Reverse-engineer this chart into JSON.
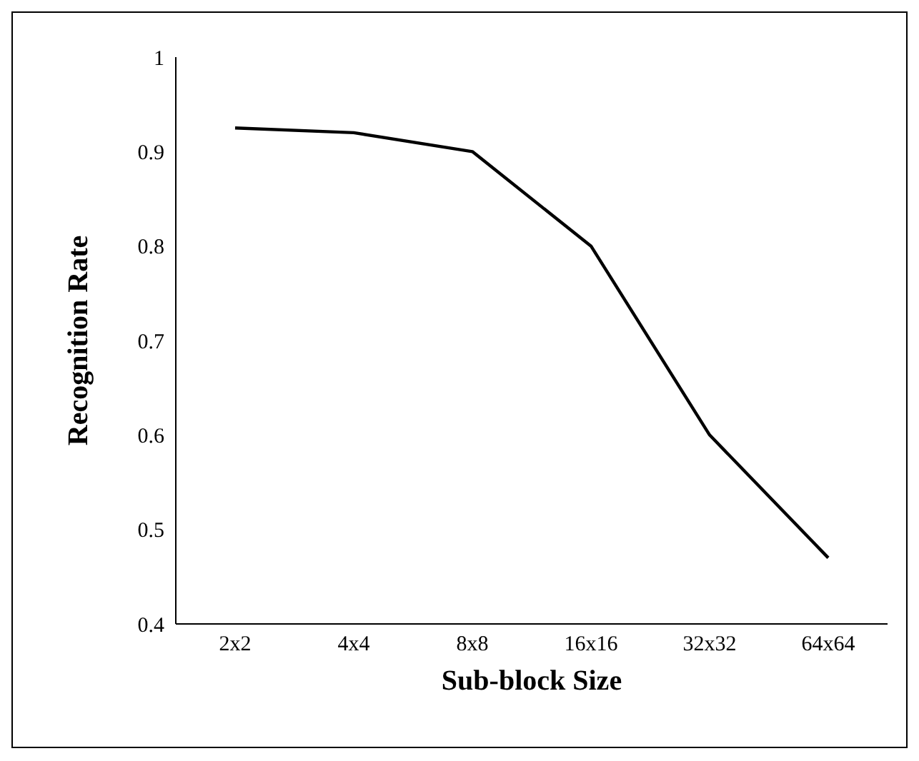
{
  "chart_data": {
    "type": "line",
    "xlabel": "Sub-block Size",
    "ylabel": "Recognition Rate",
    "categories": [
      "2x2",
      "4x4",
      "8x8",
      "16x16",
      "32x32",
      "64x64"
    ],
    "series": [
      {
        "color": "#000000",
        "values": [
          0.925,
          0.92,
          0.9,
          0.8,
          0.6,
          0.47
        ]
      }
    ],
    "ylim": [
      0.4,
      1
    ],
    "yticks": [
      0.4,
      0.5,
      0.6,
      0.7,
      0.8,
      0.9,
      1
    ],
    "grid": false,
    "legend": false,
    "marker": "none",
    "line_style": "solid"
  }
}
